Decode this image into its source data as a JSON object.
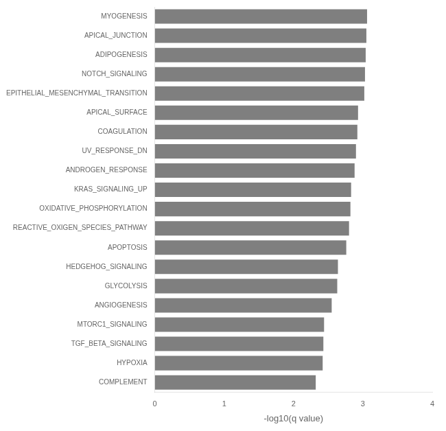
{
  "chart_data": {
    "type": "bar",
    "orientation": "horizontal",
    "categories": [
      "COMPLEMENT",
      "HYPOXIA",
      "TGF_BETA_SIGNALING",
      "MTORC1_SIGNALING",
      "ANGIOGENESIS",
      "GLYCOLYSIS",
      "HEDGEHOG_SIGNALING",
      "APOPTOSIS",
      "REACTIVE_OXIGEN_SPECIES_PATHWAY",
      "OXIDATIVE_PHOSPHORYLATION",
      "KRAS_SIGNALING_UP",
      "ANDROGEN_RESPONSE",
      "UV_RESPONSE_DN",
      "COAGULATION",
      "APICAL_SURFACE",
      "EPITHELIAL_MESENCHYMAL_TRANSITION",
      "NOTCH_SIGNALING",
      "ADIPOGENESIS",
      "APICAL_JUNCTION",
      "MYOGENESIS"
    ],
    "values": [
      2.32,
      2.42,
      2.43,
      2.44,
      2.55,
      2.63,
      2.64,
      2.76,
      2.8,
      2.82,
      2.83,
      2.88,
      2.9,
      2.92,
      2.93,
      3.02,
      3.03,
      3.04,
      3.05,
      3.06
    ],
    "color": "#7f7f7f",
    "xlabel": "-log10(q value)",
    "xlim": [
      0,
      4
    ],
    "xticks": [
      0,
      1,
      2,
      3,
      4
    ],
    "grid": false
  }
}
